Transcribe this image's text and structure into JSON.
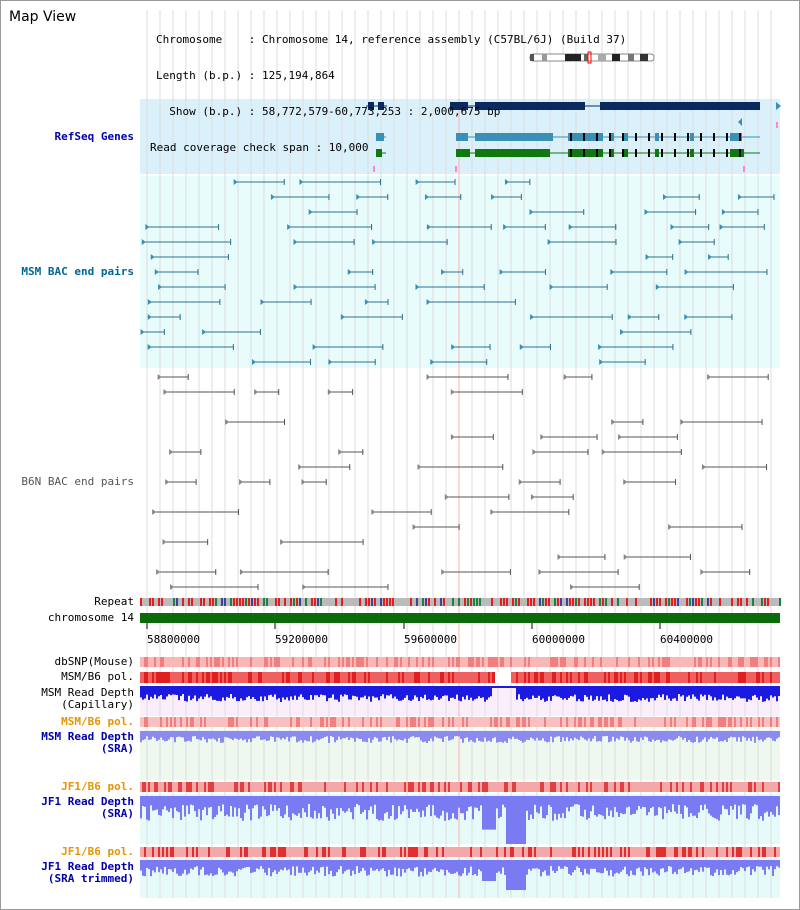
{
  "panel": {
    "title": "Map View"
  },
  "header": {
    "chromosome_line": "Chromosome    : Chromosome 14, reference assembly (C57BL/6J) (Build 37)",
    "length_line": "Length (b.p.) : 125,194,864",
    "show_line": "  Show (b.p.) : 58,772,579-60,773,253 : 2,000,675 bp",
    "coverage_line": "Read coverage check span : 10,000"
  },
  "tracks": {
    "refseq": "RefSeq Genes",
    "msm_bac": "MSM BAC end pairs",
    "b6n_bac": "B6N BAC end pairs",
    "repeat": "Repeat",
    "chromosome": "chromosome 14",
    "dbsnp": "dbSNP(Mouse)",
    "msm_b6_pol": "MSM/B6 pol.",
    "msm_depth_cap_1": "MSM Read Depth",
    "msm_depth_cap_2": "(Capillary)",
    "msm_b6_pol_sra": "MSM/B6 pol.",
    "msm_depth_sra_1": "MSM Read Depth",
    "msm_depth_sra_2": "(SRA)",
    "jf1_b6_pol": "JF1/B6 pol.",
    "jf1_depth_1": "JF1 Read Depth",
    "jf1_depth_2": "(SRA)",
    "jf1_b6_pol_t": "JF1/B6 pol.",
    "jf1_trim_1": "JF1 Read Depth",
    "jf1_trim_2": "(SRA trimmed)"
  },
  "axis": {
    "ticks": [
      "58800000",
      "59200000",
      "59600000",
      "60000000",
      "60400000"
    ]
  },
  "colors": {
    "refseq_bg": "#daf1fb",
    "bac_bg": "#e8fcfc",
    "gene_dark": "#0a2a5e",
    "gene_teal": "#3a8fb5",
    "gene_green": "#117711",
    "chrom_green": "#0b6b0b",
    "label_blue": "#0000aa",
    "label_teal": "#006699",
    "label_orange": "#e69500"
  }
}
